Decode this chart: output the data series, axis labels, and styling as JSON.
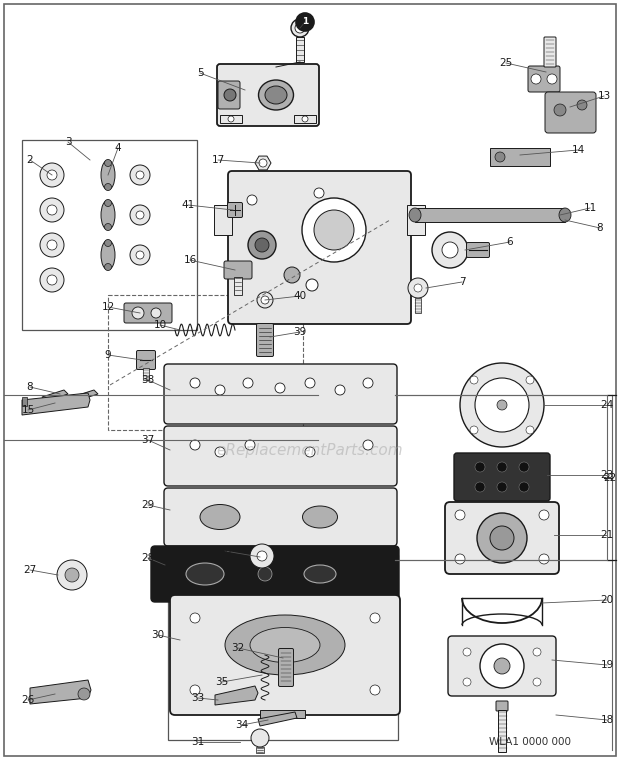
{
  "bg_color": "#ffffff",
  "border_color": "#888888",
  "line_color": "#1a1a1a",
  "part_fill": "#e8e8e8",
  "part_fill_dark": "#b0b0b0",
  "part_fill_black": "#1a1a1a",
  "part_fill_white": "#ffffff",
  "watermark": "eReplacementParts.com",
  "model_code": "WLA1 0000 000",
  "label_fontsize": 7.5,
  "watermark_fontsize": 11
}
